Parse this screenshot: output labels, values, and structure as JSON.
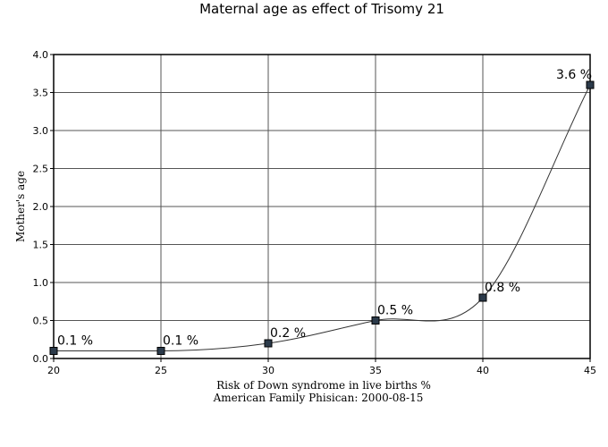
{
  "chart_data": {
    "type": "line",
    "title": "Maternal age as effect of Trisomy 21",
    "xlabel": "Risk of Down syndrome in live births %",
    "source": "American Family Phisican: 2000-08-15",
    "ylabel": "Mother's age",
    "x": [
      20,
      25,
      30,
      35,
      40,
      45
    ],
    "values": [
      0.1,
      0.1,
      0.2,
      0.5,
      0.8,
      3.6
    ],
    "data_labels": [
      "0.1 %",
      "0.1 %",
      "0.2 %",
      "0.5 %",
      "0.8 %",
      "3.6 %"
    ],
    "xlim": [
      20,
      45
    ],
    "ylim": [
      0,
      4.0
    ],
    "x_ticks": [
      20,
      25,
      30,
      35,
      40,
      45
    ],
    "y_ticks": [
      "0.0",
      "0.5",
      "1.0",
      "1.5",
      "2.0",
      "2.5",
      "3.0",
      "3.5",
      "4.0"
    ],
    "grid": true,
    "legend": "none",
    "colors": {
      "line": "#333333",
      "marker_fill": "#2b3a4a",
      "marker_stroke": "#000000"
    }
  }
}
